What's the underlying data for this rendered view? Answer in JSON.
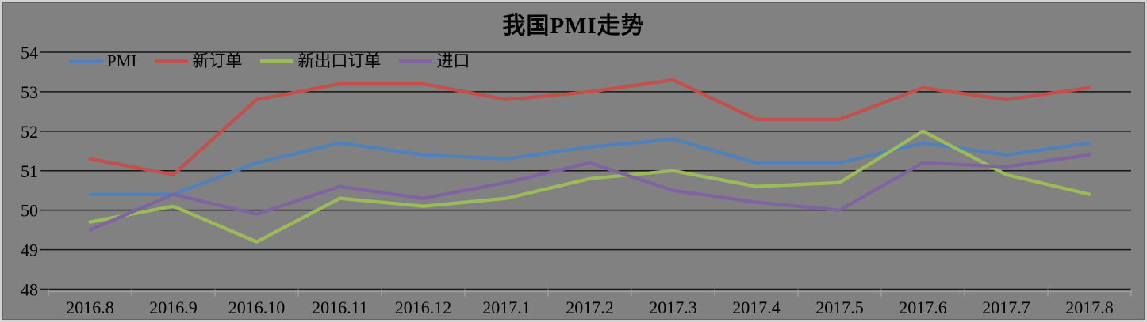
{
  "title": "我国PMI走势",
  "chart_data": {
    "type": "line",
    "title": "我国PMI走势",
    "categories": [
      "2016.8",
      "2016.9",
      "2016.10",
      "2016.11",
      "2016.12",
      "2017.1",
      "2017.2",
      "2017.3",
      "2017.4",
      "2017.5",
      "2017.6",
      "2017.7",
      "2017.8"
    ],
    "series": [
      {
        "name": "PMI",
        "color": "#4F81BD",
        "values": [
          50.4,
          50.4,
          51.2,
          51.7,
          51.4,
          51.3,
          51.6,
          51.8,
          51.2,
          51.2,
          51.7,
          51.4,
          51.7
        ]
      },
      {
        "name": "新订单",
        "color": "#C4504C",
        "values": [
          51.3,
          50.9,
          52.8,
          53.2,
          53.2,
          52.8,
          53.0,
          53.3,
          52.3,
          52.3,
          53.1,
          52.8,
          53.1
        ]
      },
      {
        "name": "新出口订单",
        "color": "#9BBB59",
        "values": [
          49.7,
          50.1,
          49.2,
          50.3,
          50.1,
          50.3,
          50.8,
          51.0,
          50.6,
          50.7,
          52.0,
          50.9,
          50.4
        ]
      },
      {
        "name": "进口",
        "color": "#8064A2",
        "values": [
          49.5,
          50.4,
          49.9,
          50.6,
          50.3,
          50.7,
          51.2,
          50.5,
          50.2,
          50.0,
          51.2,
          51.1,
          51.4
        ]
      }
    ],
    "ylim": [
      48,
      54
    ],
    "ytick_step": 1,
    "ytick_labels": [
      "48",
      "49",
      "50",
      "51",
      "52",
      "53",
      "54"
    ],
    "xlabel": "",
    "ylabel": "",
    "grid": true,
    "legend_position": "top-left-inside",
    "background_color": "#818181",
    "gridline_color": "#161616",
    "axis_color": "#9e9e9e",
    "text_color": "#000000"
  }
}
